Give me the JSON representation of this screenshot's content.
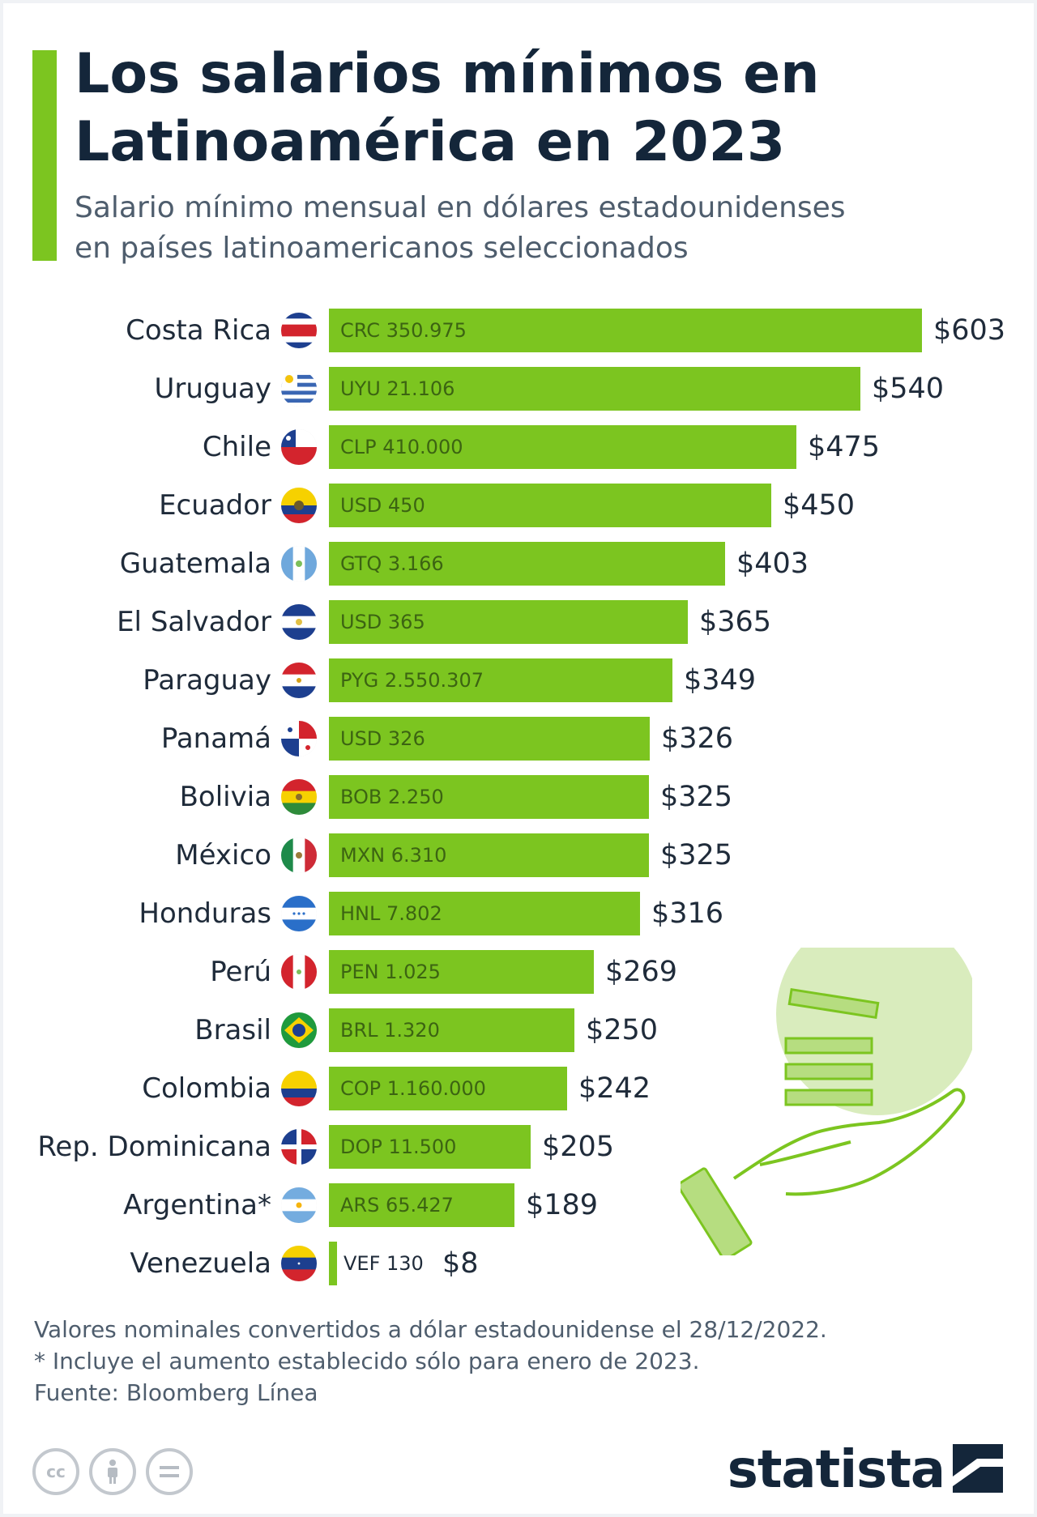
{
  "header": {
    "title_line1": "Los salarios mínimos en",
    "title_line2": "Latinoamérica en 2023",
    "subtitle_line1": "Salario mínimo mensual en dólares estadounidenses",
    "subtitle_line2": "en países latinoamericanos seleccionados"
  },
  "chart_data": {
    "type": "bar",
    "orientation": "horizontal",
    "title": "Los salarios mínimos en Latinoamérica en 2023",
    "subtitle": "Salario mínimo mensual en dólares estadounidenses en países latinoamericanos seleccionados",
    "unit": "USD",
    "bar_color": "#7cc520",
    "categories": [
      "Costa Rica",
      "Uruguay",
      "Chile",
      "Ecuador",
      "Guatemala",
      "El Salvador",
      "Paraguay",
      "Panamá",
      "Bolivia",
      "México",
      "Honduras",
      "Perú",
      "Brasil",
      "Colombia",
      "Rep. Dominicana",
      "Argentina*",
      "Venezuela"
    ],
    "values": [
      603,
      540,
      475,
      450,
      403,
      365,
      349,
      326,
      325,
      325,
      316,
      269,
      250,
      242,
      205,
      189,
      8
    ],
    "value_labels": [
      "$603",
      "$540",
      "$475",
      "$450",
      "$403",
      "$365",
      "$349",
      "$326",
      "$325",
      "$325",
      "$316",
      "$269",
      "$250",
      "$242",
      "$205",
      "$189",
      "$8"
    ],
    "local_currency_labels": [
      "CRC 350.975",
      "UYU 21.106",
      "CLP 410.000",
      "USD 450",
      "GTQ 3.166",
      "USD 365",
      "PYG 2.550.307",
      "USD 326",
      "BOB 2.250",
      "MXN 6.310",
      "HNL 7.802",
      "PEN 1.025",
      "BRL 1.320",
      "COP 1.160.000",
      "DOP 11.500",
      "ARS 65.427",
      "VEF 130"
    ],
    "flag_icons": [
      "costa-rica-flag-icon",
      "uruguay-flag-icon",
      "chile-flag-icon",
      "ecuador-flag-icon",
      "guatemala-flag-icon",
      "el-salvador-flag-icon",
      "paraguay-flag-icon",
      "panama-flag-icon",
      "bolivia-flag-icon",
      "mexico-flag-icon",
      "honduras-flag-icon",
      "peru-flag-icon",
      "brazil-flag-icon",
      "colombia-flag-icon",
      "dominican-republic-flag-icon",
      "argentina-flag-icon",
      "venezuela-flag-icon"
    ],
    "xlim": [
      0,
      603
    ]
  },
  "footer": {
    "note1": "Valores nominales convertidos a dólar estadounidense el 28/12/2022.",
    "note2": "* Incluye el aumento establecido sólo para enero de 2023.",
    "source": "Fuente: Bloomberg Línea",
    "brand": "statista",
    "license_icons": [
      "cc-icon",
      "attribution-icon",
      "no-derivatives-icon"
    ]
  },
  "colors": {
    "accent": "#7cc520",
    "title": "#14263a",
    "text": "#1f2b3a",
    "muted": "#4e5d6d"
  }
}
